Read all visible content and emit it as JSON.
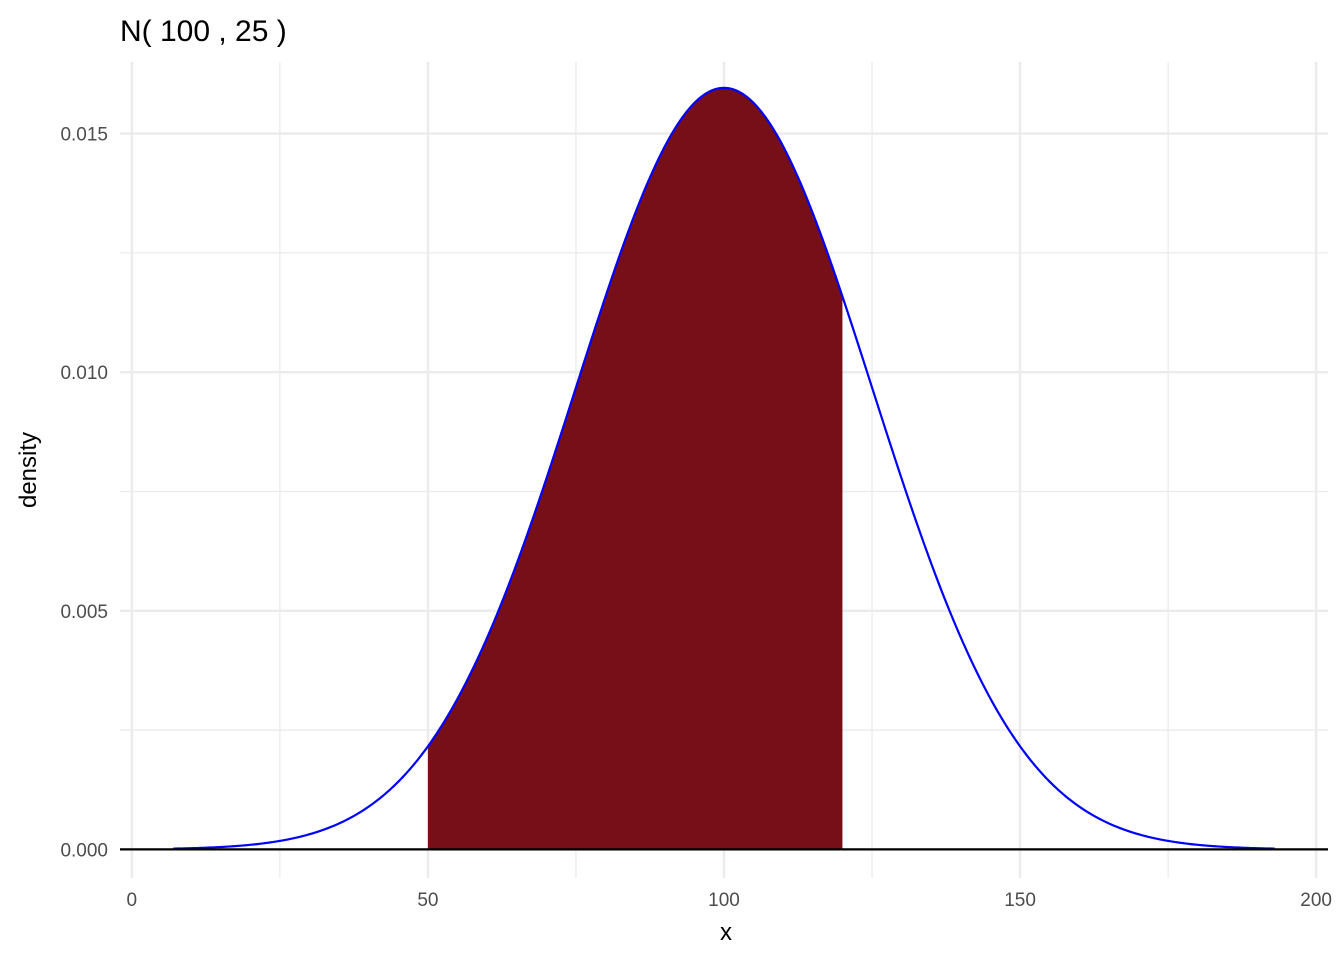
{
  "chart_data": {
    "type": "area",
    "title": "N( 100 , 25 )",
    "xlabel": "x",
    "ylabel": "density",
    "distribution": {
      "family": "normal",
      "mean": 100,
      "sd": 25
    },
    "curve_x_range": [
      7,
      193
    ],
    "shaded_interval": [
      50,
      120
    ],
    "xlim": [
      -2,
      202
    ],
    "ylim": [
      -0.0006,
      0.0165
    ],
    "x_ticks": [
      0,
      50,
      100,
      150,
      200
    ],
    "x_tick_labels": [
      "0",
      "50",
      "100",
      "150",
      "200"
    ],
    "y_ticks": [
      0,
      0.005,
      0.01,
      0.015
    ],
    "y_tick_labels": [
      "0.000",
      "0.005",
      "0.010",
      "0.015"
    ],
    "x_minor_ticks": [
      25,
      75,
      125,
      175
    ],
    "y_minor_ticks": [
      0.0025,
      0.0075,
      0.0125
    ],
    "grid": true,
    "legend": "none",
    "colors": {
      "curve": "#0000ff",
      "fill": "#760f17",
      "baseline": "#000000",
      "grid": "#ebebeb"
    }
  }
}
